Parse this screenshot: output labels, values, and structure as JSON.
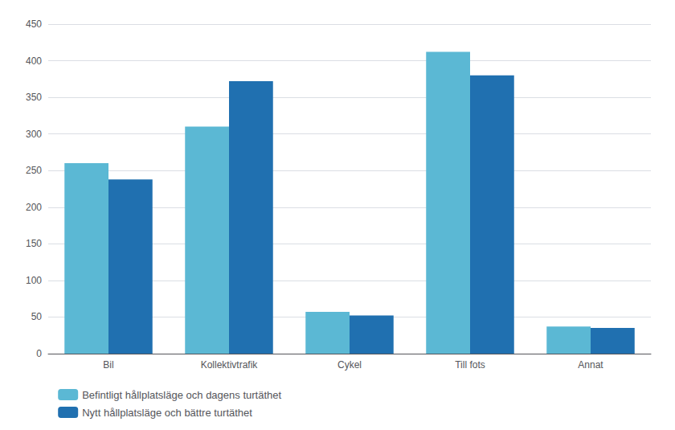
{
  "chart_data": {
    "type": "bar",
    "categories": [
      "Bil",
      "Kollektivtrafik",
      "Cykel",
      "Till fots",
      "Annat"
    ],
    "series": [
      {
        "name": "Befintligt hållplatsläge och dagens turtäthet",
        "color": "#5BB8D4",
        "values": [
          260,
          310,
          57,
          412,
          37
        ]
      },
      {
        "name": "Nytt hållplatsläge och bättre turtäthet",
        "color": "#2070B0",
        "values": [
          238,
          372,
          52,
          380,
          35
        ]
      }
    ],
    "ylim": [
      0,
      450
    ],
    "yticks": [
      0,
      50,
      100,
      150,
      200,
      250,
      300,
      350,
      400,
      450
    ],
    "grid": true,
    "legend": "bottom"
  }
}
